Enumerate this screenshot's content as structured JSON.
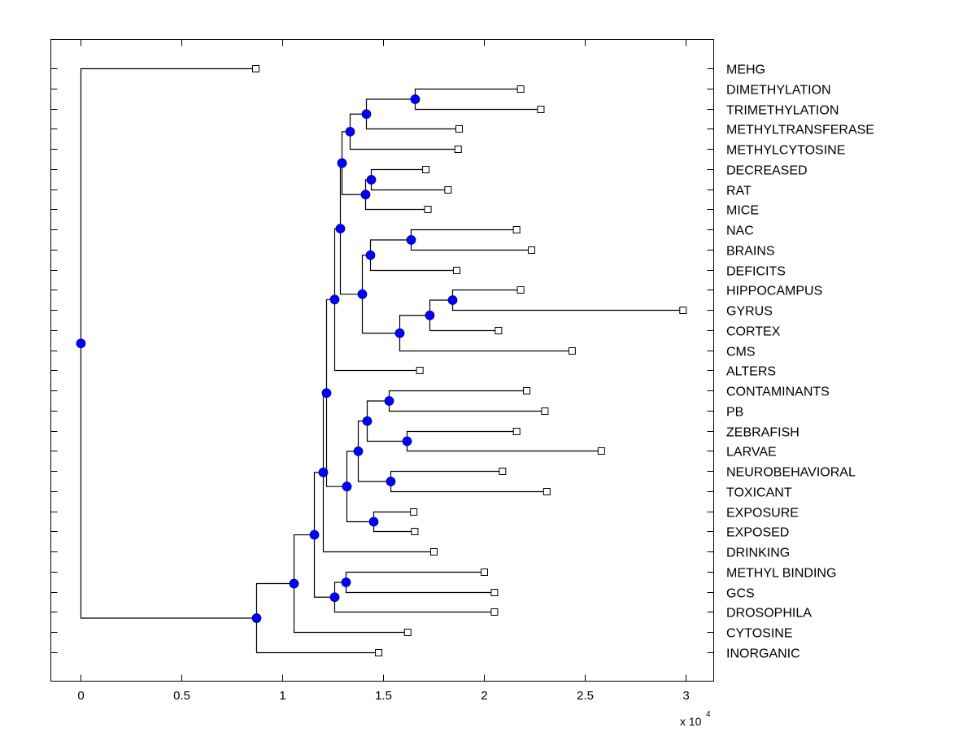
{
  "chart_data": {
    "type": "dendrogram",
    "title": "",
    "xlabel": "",
    "ylabel": "",
    "x_multiplier_label": "x 10",
    "x_multiplier_exponent": "4",
    "xlim": [
      -0.15,
      3.14
    ],
    "xticks": [
      0,
      0.5,
      1,
      1.5,
      2,
      2.5,
      3
    ],
    "xtick_labels": [
      "0",
      "0.5",
      "1",
      "1.5",
      "2",
      "2.5",
      "3"
    ],
    "grid": false,
    "leaf_order": [
      "MEHG",
      "DIMETHYLATION",
      "TRIMETHYLATION",
      "METHYLTRANSFERASE",
      "METHYLCYTOSINE",
      "DECREASED",
      "RAT",
      "MICE",
      "NAC",
      "BRAINS",
      "DEFICITS",
      "HIPPOCAMPUS",
      "GYRUS",
      "CORTEX",
      "CMS",
      "ALTERS",
      "CONTAMINANTS",
      "PB",
      "ZEBRAFISH",
      "LARVAE",
      "NEUROBEHAVIORAL",
      "TOXICANT",
      "EXPOSURE",
      "EXPOSED",
      "DRINKING",
      "METHYL BINDING",
      "GCS",
      "DROSOPHILA",
      "CYTOSINE",
      "INORGANIC"
    ],
    "colors": {
      "internal_node": "#0000ff",
      "line": "#000000",
      "leaf_marker": "#ffffff"
    },
    "tree": {
      "x": 0,
      "children": [
        {
          "leaf": "MEHG",
          "x": 0.867
        },
        {
          "x": 0.87,
          "children": [
            {
              "x": 1.056,
              "children": [
                {
                  "x": 1.157,
                  "children": [
                    {
                      "x": 1.2,
                      "children": [
                        {
                          "x": 1.218,
                          "children": [
                            {
                              "x": 1.258,
                              "children": [
                                {
                                  "x": 1.285,
                                  "children": [
                                    {
                                      "x": 1.295,
                                      "children": [
                                        {
                                          "x": 1.335,
                                          "children": [
                                            {
                                              "x": 1.415,
                                              "children": [
                                                {
                                                  "x": 1.657,
                                                  "children": [
                                                    {
                                                      "leaf": "DIMETHYLATION",
                                                      "x": 2.18
                                                    },
                                                    {
                                                      "leaf": "TRIMETHYLATION",
                                                      "x": 2.28
                                                    }
                                                  ]
                                                },
                                                {
                                                  "leaf": "METHYLTRANSFERASE",
                                                  "x": 1.875
                                                }
                                              ]
                                            },
                                            {
                                              "leaf": "METHYLCYTOSINE",
                                              "x": 1.87
                                            }
                                          ]
                                        },
                                        {
                                          "x": 1.41,
                                          "children": [
                                            {
                                              "x": 1.44,
                                              "children": [
                                                {
                                                  "leaf": "DECREASED",
                                                  "x": 1.71
                                                },
                                                {
                                                  "leaf": "RAT",
                                                  "x": 1.82
                                                }
                                              ]
                                            },
                                            {
                                              "leaf": "MICE",
                                              "x": 1.72
                                            }
                                          ]
                                        }
                                      ]
                                    },
                                    {
                                      "x": 1.395,
                                      "children": [
                                        {
                                          "x": 1.435,
                                          "children": [
                                            {
                                              "x": 1.637,
                                              "children": [
                                                {
                                                  "leaf": "NAC",
                                                  "x": 2.16
                                                },
                                                {
                                                  "leaf": "BRAINS",
                                                  "x": 2.234
                                                }
                                              ]
                                            },
                                            {
                                              "leaf": "DEFICITS",
                                              "x": 1.863
                                            }
                                          ]
                                        },
                                        {
                                          "x": 1.58,
                                          "children": [
                                            {
                                              "x": 1.73,
                                              "children": [
                                                {
                                                  "x": 1.843,
                                                  "children": [
                                                    {
                                                      "leaf": "HIPPOCAMPUS",
                                                      "x": 2.18
                                                    },
                                                    {
                                                      "leaf": "GYRUS",
                                                      "x": 2.985
                                                    }
                                                  ]
                                                },
                                                {
                                                  "leaf": "CORTEX",
                                                  "x": 2.07
                                                }
                                              ]
                                            },
                                            {
                                              "leaf": "CMS",
                                              "x": 2.435
                                            }
                                          ]
                                        }
                                      ]
                                    }
                                  ]
                                },
                                {
                                  "leaf": "ALTERS",
                                  "x": 1.68
                                }
                              ]
                            },
                            {
                              "x": 1.32,
                              "children": [
                                {
                                  "x": 1.375,
                                  "children": [
                                    {
                                      "x": 1.42,
                                      "children": [
                                        {
                                          "x": 1.528,
                                          "children": [
                                            {
                                              "leaf": "CONTAMINANTS",
                                              "x": 2.21
                                            },
                                            {
                                              "leaf": "PB",
                                              "x": 2.3
                                            }
                                          ]
                                        },
                                        {
                                          "x": 1.617,
                                          "children": [
                                            {
                                              "leaf": "ZEBRAFISH",
                                              "x": 2.16
                                            },
                                            {
                                              "leaf": "LARVAE",
                                              "x": 2.58
                                            }
                                          ]
                                        }
                                      ]
                                    },
                                    {
                                      "x": 1.535,
                                      "children": [
                                        {
                                          "leaf": "NEUROBEHAVIORAL",
                                          "x": 2.09
                                        },
                                        {
                                          "leaf": "TOXICANT",
                                          "x": 2.31
                                        }
                                      ]
                                    }
                                  ]
                                },
                                {
                                  "x": 1.45,
                                  "children": [
                                    {
                                      "leaf": "EXPOSURE",
                                      "x": 1.65
                                    },
                                    {
                                      "leaf": "EXPOSED",
                                      "x": 1.655
                                    }
                                  ]
                                }
                              ]
                            }
                          ]
                        },
                        {
                          "leaf": "DRINKING",
                          "x": 1.75
                        }
                      ]
                    },
                    {
                      "x": 1.258,
                      "children": [
                        {
                          "x": 1.315,
                          "children": [
                            {
                              "leaf": "METHYL BINDING",
                              "x": 2.0
                            },
                            {
                              "leaf": "GCS",
                              "x": 2.05
                            }
                          ]
                        },
                        {
                          "leaf": "DROSOPHILA",
                          "x": 2.05
                        }
                      ]
                    }
                  ]
                },
                {
                  "leaf": "CYTOSINE",
                  "x": 1.62
                }
              ]
            },
            {
              "leaf": "INORGANIC",
              "x": 1.476
            }
          ]
        }
      ]
    }
  }
}
